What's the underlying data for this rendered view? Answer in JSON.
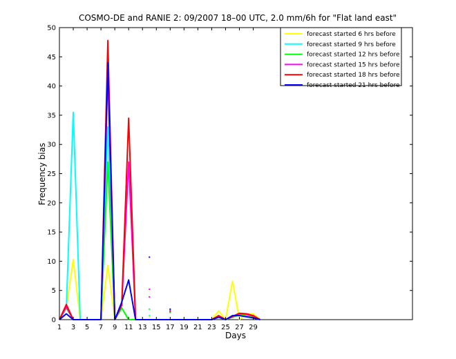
{
  "chart_data": {
    "type": "line",
    "title": "COSMO-DE and RANIE 2: 09/2007 18–00 UTC, 2.0 mm/6h for \"Flat land east\"",
    "xlabel": "Days",
    "ylabel": "Frequency bias",
    "xlim": [
      1,
      52
    ],
    "ylim": [
      0,
      50
    ],
    "xticks": [
      1,
      3,
      5,
      7,
      9,
      11,
      13,
      15,
      17,
      19,
      21,
      23,
      25,
      27,
      29
    ],
    "yticks": [
      0,
      5,
      10,
      15,
      20,
      25,
      30,
      35,
      40,
      45,
      50
    ],
    "grid": false,
    "legend_position": "top-right",
    "series": [
      {
        "name": "forecast started 6 hrs before",
        "color": "#ffff00",
        "points": [
          [
            1,
            0
          ],
          [
            2,
            2
          ],
          [
            3,
            10.3
          ],
          [
            4,
            0
          ],
          [
            7,
            0
          ],
          [
            8,
            9.3
          ],
          [
            9,
            0
          ],
          [
            10,
            2
          ],
          [
            11,
            0
          ],
          [
            23,
            0
          ],
          [
            24,
            1.5
          ],
          [
            25,
            0
          ],
          [
            26,
            6.6
          ],
          [
            27,
            0
          ],
          [
            28,
            1
          ],
          [
            29,
            1
          ],
          [
            30,
            0
          ]
        ],
        "markers": [
          [
            14,
            0.5
          ]
        ]
      },
      {
        "name": "forecast started 9 hrs before",
        "color": "#00ffff",
        "points": [
          [
            1,
            0
          ],
          [
            2,
            2
          ],
          [
            3,
            35.5
          ],
          [
            4,
            0
          ],
          [
            7,
            0
          ],
          [
            8,
            33
          ],
          [
            9,
            0
          ],
          [
            10,
            2
          ],
          [
            11,
            0
          ],
          [
            23,
            0
          ],
          [
            24,
            0.5
          ],
          [
            25,
            0
          ],
          [
            27,
            0.8
          ],
          [
            28,
            0.5
          ],
          [
            29,
            0.3
          ],
          [
            30,
            0
          ]
        ],
        "markers": [
          [
            14,
            0.7
          ]
        ]
      },
      {
        "name": "forecast started 12 hrs before",
        "color": "#00ff00",
        "points": [
          [
            1,
            0
          ],
          [
            2,
            2
          ],
          [
            3,
            0
          ],
          [
            7,
            0
          ],
          [
            8,
            27
          ],
          [
            9,
            0
          ],
          [
            10,
            2
          ],
          [
            11,
            0
          ],
          [
            23,
            0
          ],
          [
            24,
            0.5
          ],
          [
            25,
            0
          ],
          [
            27,
            0.8
          ],
          [
            28,
            0.6
          ],
          [
            29,
            0.4
          ],
          [
            30,
            0
          ]
        ],
        "markers": [
          [
            14,
            1.8
          ],
          [
            17,
            1.2
          ]
        ]
      },
      {
        "name": "forecast started 15 hrs before",
        "color": "#ff00ff",
        "points": [
          [
            1,
            0
          ],
          [
            2,
            2.2
          ],
          [
            3,
            0
          ],
          [
            7,
            0
          ],
          [
            8,
            42
          ],
          [
            9,
            0
          ],
          [
            10,
            2.5
          ],
          [
            11,
            27
          ],
          [
            12,
            0
          ],
          [
            23,
            0
          ],
          [
            24,
            0.6
          ],
          [
            25,
            0
          ],
          [
            27,
            1
          ],
          [
            28,
            0.9
          ],
          [
            29,
            0.6
          ],
          [
            30,
            0
          ]
        ],
        "markers": [
          [
            14,
            3.9
          ],
          [
            14,
            5.2
          ],
          [
            17,
            1.6
          ]
        ]
      },
      {
        "name": "forecast started 18 hrs before",
        "color": "#ff0000",
        "points": [
          [
            1,
            0
          ],
          [
            2,
            2.6
          ],
          [
            3,
            0
          ],
          [
            7,
            0
          ],
          [
            8,
            47.8
          ],
          [
            9,
            0
          ],
          [
            10,
            2.5
          ],
          [
            11,
            34.5
          ],
          [
            12,
            0
          ],
          [
            23,
            0
          ],
          [
            24,
            0.7
          ],
          [
            25,
            0
          ],
          [
            27,
            1.1
          ],
          [
            28,
            1
          ],
          [
            29,
            0.7
          ],
          [
            30,
            0
          ]
        ],
        "markers": [
          [
            17,
            1.4
          ]
        ]
      },
      {
        "name": "forecast started 21 hrs before",
        "color": "#0000ff",
        "points": [
          [
            1,
            0
          ],
          [
            2,
            1
          ],
          [
            3,
            0
          ],
          [
            7,
            0
          ],
          [
            8,
            44
          ],
          [
            9,
            0
          ],
          [
            10,
            3
          ],
          [
            11,
            6.8
          ],
          [
            12,
            0
          ],
          [
            23,
            0
          ],
          [
            24,
            0.4
          ],
          [
            25,
            0
          ],
          [
            26,
            0.7
          ],
          [
            27,
            0.7
          ],
          [
            28,
            0.5
          ],
          [
            29,
            0.3
          ],
          [
            30,
            0
          ]
        ],
        "markers": [
          [
            14,
            10.7
          ],
          [
            17,
            1.8
          ]
        ]
      }
    ]
  }
}
